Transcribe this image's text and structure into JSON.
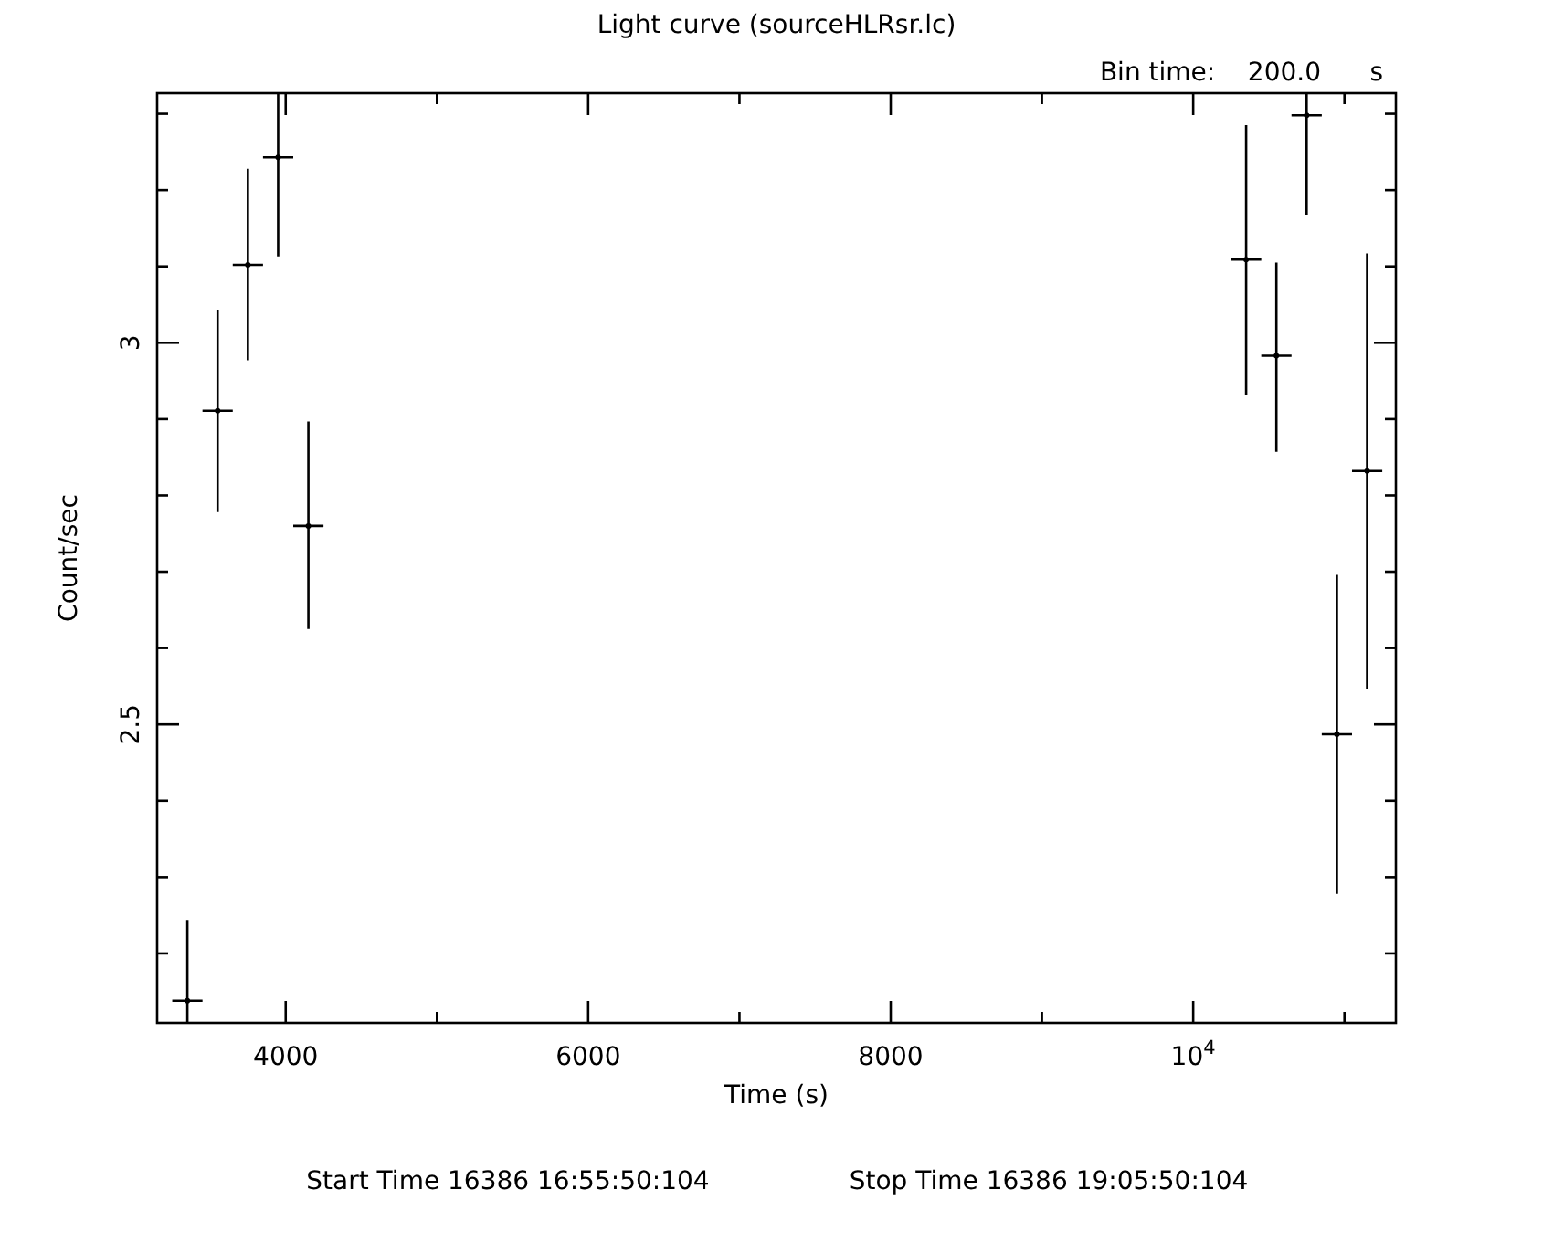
{
  "chart_data": {
    "type": "scatter",
    "title": "Light curve (sourceHLRsr.lc)",
    "xlabel": "Time (s)",
    "ylabel": "Count/sec",
    "x": [
      3350,
      3550,
      3750,
      3950,
      4150,
      10350,
      10550,
      10750,
      10950,
      11150
    ],
    "values": [
      2.138,
      2.911,
      3.102,
      3.243,
      2.76,
      3.109,
      2.983,
      3.298,
      2.487,
      2.832
    ],
    "errors": [
      [
        2.109,
        2.244
      ],
      [
        2.778,
        3.043
      ],
      [
        2.977,
        3.228
      ],
      [
        3.113,
        3.327
      ],
      [
        2.625,
        2.897
      ],
      [
        2.931,
        3.285
      ],
      [
        2.857,
        3.105
      ],
      [
        3.168,
        3.327
      ],
      [
        2.278,
        2.696
      ],
      [
        2.546,
        3.117
      ]
    ],
    "xerrors": [
      100,
      100,
      100,
      100,
      100,
      100,
      100,
      100,
      100,
      100
    ],
    "color": "#000000",
    "xlim": [
      3150,
      11340
    ],
    "ylim": [
      2.109,
      3.327
    ],
    "xticks": [
      4000,
      {
        "value": 5000,
        "label": null
      },
      6000,
      {
        "value": 7000,
        "label": null
      },
      8000,
      {
        "value": 9000,
        "label": null
      },
      {
        "value": 10000,
        "label": "10$^{4}$"
      },
      {
        "value": 11000,
        "label": null
      }
    ],
    "yticks": [
      {
        "value": 2.2,
        "label": null
      },
      {
        "value": 2.3,
        "label": null
      },
      {
        "value": 2.4,
        "label": null
      },
      2.5,
      {
        "value": 2.6,
        "label": null
      },
      {
        "value": 2.7,
        "label": null
      },
      {
        "value": 2.8,
        "label": null
      },
      {
        "value": 2.9,
        "label": null
      },
      3,
      {
        "value": 3.1,
        "label": null
      },
      {
        "value": 3.2,
        "label": null
      },
      {
        "value": 3.3,
        "label": null
      }
    ],
    "grid": false,
    "annotations": [
      "Bin time:    200.0      s",
      "Start Time 16386 16:55:50:104",
      "Stop Time 16386 19:05:50:104"
    ]
  }
}
